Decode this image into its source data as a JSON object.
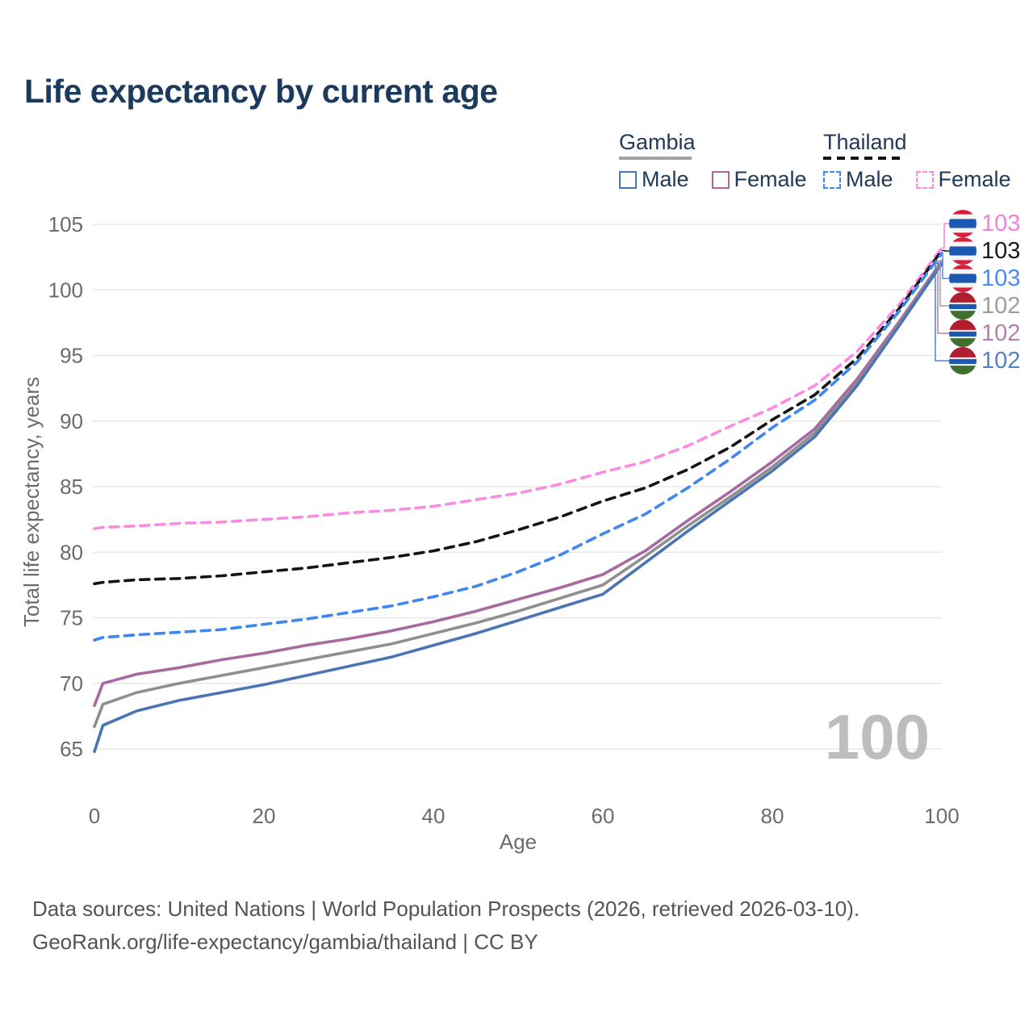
{
  "title": "Life expectancy by current age",
  "watermark_age": "100",
  "footer": {
    "line1": "Data sources: United Nations | World Population Prospects (2026, retrieved 2026-03-10).",
    "line2": "GeoRank.org/life-expectancy/gambia/thailand | CC BY"
  },
  "legend": {
    "groups": [
      {
        "label": "Gambia",
        "underline_style": "solid",
        "underline_color": "#a3a3a3",
        "items": [
          {
            "label": "Male",
            "color": "#4a74b4",
            "dash": false
          },
          {
            "label": "Female",
            "color": "#a7699f",
            "dash": false
          }
        ]
      },
      {
        "label": "Thailand",
        "underline_style": "dashed",
        "underline_color": "#141414",
        "items": [
          {
            "label": "Male",
            "color": "#3f87f0",
            "dash": true
          },
          {
            "label": "Female",
            "color": "#fb8be2",
            "dash": true
          }
        ]
      }
    ]
  },
  "chart_data": {
    "type": "line",
    "title": "Life expectancy by current age",
    "xlabel": "Age",
    "ylabel": "Total life expectancy, years",
    "xlim": [
      0,
      100
    ],
    "ylim": [
      65,
      105
    ],
    "xticks": [
      0,
      20,
      40,
      60,
      80,
      100
    ],
    "yticks": [
      65,
      70,
      75,
      80,
      85,
      90,
      95,
      100,
      105
    ],
    "grid": "horizontal",
    "grid_color": "#e8e8e8",
    "axis_text_color": "#6b6b6b",
    "x": [
      0,
      1,
      5,
      10,
      15,
      20,
      25,
      30,
      35,
      40,
      45,
      50,
      55,
      60,
      65,
      70,
      75,
      80,
      85,
      90,
      95,
      100
    ],
    "series": [
      {
        "name": "Thailand Female",
        "country": "thailand",
        "sex": "female",
        "color": "#fb8be2",
        "dash": true,
        "values": [
          81.8,
          81.9,
          82.0,
          82.2,
          82.3,
          82.5,
          82.7,
          83.0,
          83.2,
          83.5,
          84.0,
          84.5,
          85.2,
          86.1,
          86.9,
          88.1,
          89.6,
          91.0,
          92.7,
          95.3,
          98.9,
          103.2
        ]
      },
      {
        "name": "Thailand Both sexes",
        "country": "thailand",
        "sex": "both",
        "color": "#141414",
        "dash": true,
        "values": [
          77.6,
          77.7,
          77.9,
          78.0,
          78.2,
          78.5,
          78.8,
          79.2,
          79.6,
          80.1,
          80.8,
          81.7,
          82.7,
          83.9,
          84.9,
          86.3,
          88.0,
          90.1,
          92.0,
          94.8,
          98.6,
          103.0
        ]
      },
      {
        "name": "Thailand Male",
        "country": "thailand",
        "sex": "male",
        "color": "#3f87f0",
        "dash": true,
        "values": [
          73.3,
          73.5,
          73.7,
          73.9,
          74.1,
          74.5,
          74.9,
          75.4,
          75.9,
          76.6,
          77.4,
          78.5,
          79.8,
          81.4,
          82.9,
          84.9,
          87.1,
          89.5,
          91.6,
          94.5,
          98.4,
          102.8
        ]
      },
      {
        "name": "Gambia Female",
        "country": "gambia",
        "sex": "female",
        "color": "#a7699f",
        "dash": false,
        "values": [
          68.3,
          70.0,
          70.7,
          71.2,
          71.8,
          72.3,
          72.9,
          73.4,
          74.0,
          74.7,
          75.5,
          76.4,
          77.3,
          78.3,
          80.1,
          82.4,
          84.6,
          86.9,
          89.4,
          93.2,
          97.6,
          102.2
        ]
      },
      {
        "name": "Gambia Both sexes",
        "country": "gambia",
        "sex": "both",
        "color": "#8f8f8f",
        "dash": false,
        "values": [
          66.7,
          68.4,
          69.3,
          70.0,
          70.6,
          71.2,
          71.8,
          72.4,
          73.0,
          73.8,
          74.6,
          75.5,
          76.5,
          77.5,
          79.7,
          82.0,
          84.2,
          86.5,
          89.1,
          92.9,
          97.4,
          102.1
        ]
      },
      {
        "name": "Gambia Male",
        "country": "gambia",
        "sex": "male",
        "color": "#4a74b4",
        "dash": false,
        "values": [
          64.8,
          66.8,
          67.9,
          68.7,
          69.3,
          69.9,
          70.6,
          71.3,
          72.0,
          72.9,
          73.8,
          74.8,
          75.8,
          76.8,
          79.2,
          81.6,
          83.9,
          86.2,
          88.8,
          92.7,
          97.3,
          102.0
        ]
      }
    ],
    "end_labels": [
      {
        "value": "103",
        "country": "thailand",
        "text_color": "#f57fdd",
        "series": "Thailand Female"
      },
      {
        "value": "103",
        "country": "thailand",
        "text_color": "#1a1a1a",
        "series": "Thailand Both sexes"
      },
      {
        "value": "103",
        "country": "thailand",
        "text_color": "#4b8af2",
        "series": "Thailand Male"
      },
      {
        "value": "102",
        "country": "gambia",
        "text_color": "#9d9d9d",
        "series": "Gambia Both sexes"
      },
      {
        "value": "102",
        "country": "gambia",
        "text_color": "#b27fae",
        "series": "Gambia Female"
      },
      {
        "value": "102",
        "country": "gambia",
        "text_color": "#5581c5",
        "series": "Gambia Male"
      }
    ],
    "flag_colors": {
      "thailand": {
        "red": "#d6203b",
        "white": "#f4f4f4",
        "blue": "#1d59b3"
      },
      "gambia": {
        "red": "#b01e30",
        "white": "#f4f4f4",
        "blue": "#1d59b3",
        "green": "#40702f"
      }
    }
  }
}
